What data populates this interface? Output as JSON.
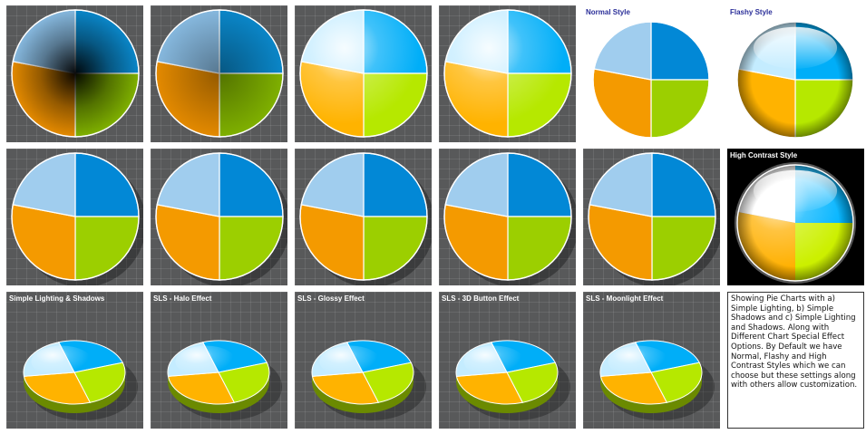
{
  "chart_data": [
    {
      "type": "pie",
      "title": "",
      "categories": [
        "Blue",
        "Green",
        "Orange",
        "Light Blue"
      ],
      "values": [
        25,
        25,
        28,
        22
      ]
    },
    {
      "type": "pie",
      "title": "",
      "categories": [
        "Blue",
        "Green",
        "Orange",
        "Light Blue"
      ],
      "values": [
        25,
        25,
        28,
        22
      ]
    },
    {
      "type": "pie",
      "title": "",
      "categories": [
        "Blue",
        "Green",
        "Orange",
        "Light Blue"
      ],
      "values": [
        25,
        25,
        28,
        22
      ]
    },
    {
      "type": "pie",
      "title": "",
      "categories": [
        "Blue",
        "Green",
        "Orange",
        "Light Blue"
      ],
      "values": [
        25,
        25,
        28,
        22
      ]
    },
    {
      "type": "pie",
      "title": "Normal Style",
      "categories": [
        "Blue",
        "Green",
        "Orange",
        "Light Blue"
      ],
      "values": [
        25,
        25,
        28,
        22
      ]
    },
    {
      "type": "pie",
      "title": "Flashy Style",
      "categories": [
        "Blue",
        "Green",
        "Orange",
        "Light Blue"
      ],
      "values": [
        25,
        25,
        28,
        22
      ]
    },
    {
      "type": "pie",
      "title": "",
      "categories": [
        "Blue",
        "Green",
        "Orange",
        "Light Blue"
      ],
      "values": [
        25,
        25,
        28,
        22
      ]
    },
    {
      "type": "pie",
      "title": "",
      "categories": [
        "Blue",
        "Green",
        "Orange",
        "Light Blue"
      ],
      "values": [
        25,
        25,
        28,
        22
      ]
    },
    {
      "type": "pie",
      "title": "",
      "categories": [
        "Blue",
        "Green",
        "Orange",
        "Light Blue"
      ],
      "values": [
        25,
        25,
        28,
        22
      ]
    },
    {
      "type": "pie",
      "title": "",
      "categories": [
        "Blue",
        "Green",
        "Orange",
        "Light Blue"
      ],
      "values": [
        25,
        25,
        28,
        22
      ]
    },
    {
      "type": "pie",
      "title": "",
      "categories": [
        "Blue",
        "Green",
        "Orange",
        "Light Blue"
      ],
      "values": [
        25,
        25,
        28,
        22
      ]
    },
    {
      "type": "pie",
      "title": "High Contrast Style",
      "categories": [
        "Blue",
        "Green",
        "Orange",
        "Light Blue"
      ],
      "values": [
        25,
        25,
        28,
        22
      ]
    },
    {
      "type": "pie",
      "title": "Simple Lighting & Shadows",
      "categories": [
        "Blue",
        "Green",
        "Orange",
        "Light Blue"
      ],
      "values": [
        25,
        25,
        28,
        22
      ]
    },
    {
      "type": "pie",
      "title": "SLS - Halo Effect",
      "categories": [
        "Blue",
        "Green",
        "Orange",
        "Light Blue"
      ],
      "values": [
        25,
        25,
        28,
        22
      ]
    },
    {
      "type": "pie",
      "title": "SLS - Glossy Effect",
      "categories": [
        "Blue",
        "Green",
        "Orange",
        "Light Blue"
      ],
      "values": [
        25,
        25,
        28,
        22
      ]
    },
    {
      "type": "pie",
      "title": "SLS - 3D Button Effect",
      "categories": [
        "Blue",
        "Green",
        "Orange",
        "Light Blue"
      ],
      "values": [
        25,
        25,
        28,
        22
      ]
    },
    {
      "type": "pie",
      "title": "SLS - Moonlight Effect",
      "categories": [
        "Blue",
        "Green",
        "Orange",
        "Light Blue"
      ],
      "values": [
        25,
        25,
        28,
        22
      ]
    }
  ],
  "colors": {
    "Blue": "#0288d6",
    "Green": "#9ccf00",
    "Orange": "#f49a00",
    "Light Blue": "#a0cdee",
    "background": "#58595a"
  },
  "description_text": "Showing Pie Charts with a) Simple Lighting, b) Simple Shadows and c) Simple Lighting and Shadows. Along with Different Chart Special Effect Options. By Default we have Normal, Flashy and High Contrast Styles which we can choose but these settings along with others allow customization."
}
